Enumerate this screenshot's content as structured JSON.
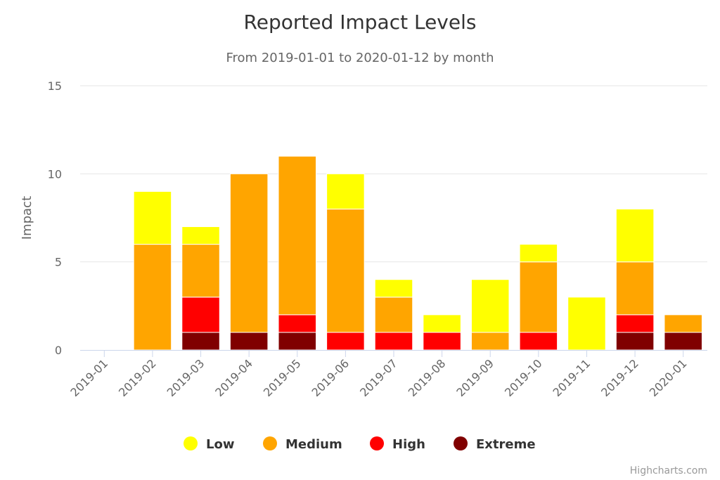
{
  "chart_data": {
    "type": "bar",
    "stacked": true,
    "title": "Reported Impact Levels",
    "subtitle": "From 2019-01-01 to 2020-01-12 by month",
    "ylabel": "Impact",
    "xlabel": "",
    "ylim": [
      0,
      15
    ],
    "yticks": [
      0,
      5,
      10,
      15
    ],
    "grid": true,
    "legend_position": "bottom",
    "categories": [
      "2019-01",
      "2019-02",
      "2019-03",
      "2019-04",
      "2019-05",
      "2019-06",
      "2019-07",
      "2019-08",
      "2019-09",
      "2019-10",
      "2019-11",
      "2019-12",
      "2020-01"
    ],
    "series": [
      {
        "name": "Low",
        "color": "#ffff00",
        "values": [
          0,
          3,
          1,
          0,
          0,
          2,
          1,
          1,
          3,
          1,
          3,
          3,
          0
        ]
      },
      {
        "name": "Medium",
        "color": "#ffa500",
        "values": [
          0,
          6,
          3,
          9,
          9,
          7,
          2,
          0,
          1,
          4,
          0,
          3,
          1
        ]
      },
      {
        "name": "High",
        "color": "#ff0000",
        "values": [
          0,
          0,
          2,
          0,
          1,
          1,
          1,
          1,
          0,
          1,
          0,
          1,
          0
        ]
      },
      {
        "name": "Extreme",
        "color": "#800000",
        "values": [
          0,
          0,
          1,
          1,
          1,
          0,
          0,
          0,
          0,
          0,
          0,
          1,
          1
        ]
      }
    ]
  },
  "credits": "Highcharts.com"
}
